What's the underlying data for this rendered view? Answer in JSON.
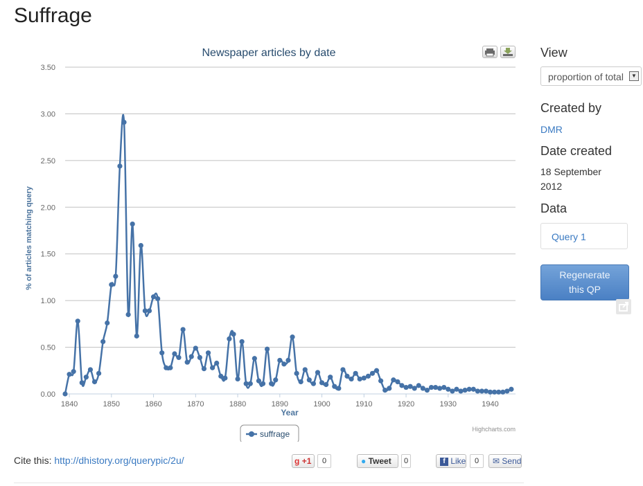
{
  "page": {
    "title": "Suffrage"
  },
  "chart_data": {
    "type": "line",
    "title": "Newspaper articles by date",
    "xlabel": "Year",
    "ylabel": "% of articles matching query",
    "xlim": [
      1839,
      1946
    ],
    "ylim": [
      0,
      3.5
    ],
    "x_ticks": [
      1840,
      1850,
      1860,
      1870,
      1880,
      1890,
      1900,
      1910,
      1920,
      1930,
      1940
    ],
    "y_ticks": [
      "0.00",
      "0.50",
      "1.00",
      "1.50",
      "2.00",
      "2.50",
      "3.00",
      "3.50"
    ],
    "legend": "bottom-center",
    "grid": true,
    "credits": "Highcharts.com",
    "series": [
      {
        "name": "suffrage",
        "color": "#4572a7",
        "x": [
          1839,
          1840,
          1841,
          1842,
          1843,
          1844,
          1845,
          1846,
          1847,
          1848,
          1849,
          1850,
          1851,
          1852,
          1853,
          1854,
          1855,
          1856,
          1857,
          1858,
          1859,
          1860,
          1861,
          1862,
          1863,
          1864,
          1865,
          1866,
          1867,
          1868,
          1869,
          1870,
          1871,
          1872,
          1873,
          1874,
          1875,
          1876,
          1877,
          1878,
          1879,
          1880,
          1881,
          1882,
          1883,
          1884,
          1885,
          1886,
          1887,
          1888,
          1889,
          1890,
          1891,
          1892,
          1893,
          1894,
          1895,
          1896,
          1897,
          1898,
          1899,
          1900,
          1901,
          1902,
          1903,
          1904,
          1905,
          1906,
          1907,
          1908,
          1909,
          1910,
          1911,
          1912,
          1913,
          1914,
          1915,
          1916,
          1917,
          1918,
          1919,
          1920,
          1921,
          1922,
          1923,
          1924,
          1925,
          1926,
          1927,
          1928,
          1929,
          1930,
          1931,
          1932,
          1933,
          1934,
          1935,
          1936,
          1937,
          1938,
          1939,
          1940,
          1941,
          1942,
          1943,
          1944,
          1945
        ],
        "values": [
          0.0,
          0.21,
          0.24,
          0.78,
          0.12,
          0.18,
          0.26,
          0.13,
          0.22,
          0.56,
          0.76,
          1.17,
          1.26,
          2.44,
          2.91,
          0.85,
          1.82,
          0.62,
          1.59,
          0.89,
          0.89,
          1.04,
          1.02,
          0.44,
          0.28,
          0.28,
          0.43,
          0.39,
          0.69,
          0.34,
          0.4,
          0.49,
          0.39,
          0.27,
          0.44,
          0.28,
          0.33,
          0.19,
          0.17,
          0.59,
          0.64,
          0.16,
          0.56,
          0.11,
          0.11,
          0.38,
          0.14,
          0.11,
          0.48,
          0.11,
          0.15,
          0.36,
          0.32,
          0.36,
          0.61,
          0.22,
          0.13,
          0.26,
          0.15,
          0.11,
          0.23,
          0.12,
          0.1,
          0.18,
          0.08,
          0.06,
          0.26,
          0.19,
          0.16,
          0.22,
          0.16,
          0.17,
          0.19,
          0.22,
          0.25,
          0.14,
          0.04,
          0.06,
          0.15,
          0.13,
          0.09,
          0.07,
          0.08,
          0.06,
          0.09,
          0.06,
          0.04,
          0.07,
          0.07,
          0.06,
          0.07,
          0.05,
          0.03,
          0.05,
          0.03,
          0.04,
          0.05,
          0.05,
          0.03,
          0.03,
          0.03,
          0.02,
          0.02,
          0.02,
          0.02,
          0.03,
          0.05
        ]
      }
    ]
  },
  "toolbar": {
    "print_icon": "print-icon",
    "download_icon": "download-icon"
  },
  "sidebar": {
    "view_heading": "View",
    "view_value": "proportion of total",
    "created_by_heading": "Created by",
    "created_by_value": "DMR",
    "date_created_heading": "Date created",
    "date_created_line1": "18 September",
    "date_created_line2": "2012",
    "data_heading": "Data",
    "query_label": "Query 1",
    "regen_line1": "Regenerate",
    "regen_line2": "this QP"
  },
  "cite": {
    "label": "Cite this:",
    "url": "http://dhistory.org/querypic/2u/"
  },
  "social": {
    "gplus_label": "+1",
    "gplus_count": "0",
    "tweet_label": "Tweet",
    "tweet_count": "0",
    "like_label": "Like",
    "like_count": "0",
    "send_label": "Send"
  }
}
